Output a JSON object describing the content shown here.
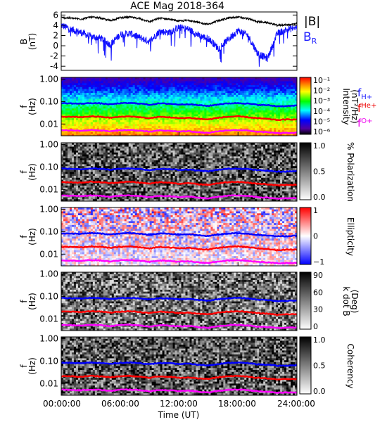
{
  "title": "ACE Mag 2018-364",
  "x_axis": {
    "label": "Time (UT)",
    "ticks": [
      "00:00:00",
      "06:00:00",
      "12:00:00",
      "18:00:00",
      "24:00:00"
    ],
    "tick_hours": [
      0,
      6,
      12,
      18,
      24
    ]
  },
  "freq_axis": {
    "ylabel_top": "f",
    "ylabel_bottom": "(Hz)",
    "ticks": [
      "1.00",
      "0.10",
      "0.01"
    ],
    "tick_values": [
      1.0,
      0.1,
      0.01
    ],
    "range": [
      0.003,
      1.2
    ]
  },
  "colors": {
    "B_total": "#000000",
    "B_R": "#1010ff",
    "fH": "#0000ff",
    "fHe": "#ff0000",
    "fO": "#ff00ff"
  },
  "panel1": {
    "ylabel_top": "B",
    "ylabel_bottom": "(nT)",
    "legend_B": "|B|",
    "legend_BR": "B",
    "legend_BR_sub": "R",
    "ticks": [
      "6",
      "4",
      "2",
      "0",
      "-2",
      "-4"
    ],
    "tick_values": [
      6,
      4,
      2,
      0,
      -2,
      -4
    ],
    "range": [
      -4.8,
      6.6
    ]
  },
  "gyro_legend": {
    "fH": {
      "main": "f",
      "sub": "H+"
    },
    "fHe": {
      "main": "f",
      "sub": "He+"
    },
    "fO": {
      "main": "f",
      "sub": "O+"
    }
  },
  "colorbars": {
    "intensity": {
      "label1": "Intensity",
      "label2": "(nT²/Hz)",
      "ticks": [
        "10⁻¹",
        "10⁻²",
        "10⁻³",
        "10⁻⁴",
        "10⁻⁵",
        "10⁻⁶"
      ]
    },
    "polarization": {
      "label": "% Polarization",
      "ticks": [
        "1.0",
        "0.5",
        "0.0"
      ]
    },
    "ellipticity": {
      "label": "Ellipticity",
      "ticks": [
        "1",
        "0",
        "−1"
      ]
    },
    "kdotb": {
      "label1": "k dot B",
      "label2": "(Deg)",
      "ticks": [
        "90",
        "60",
        "30",
        "0"
      ]
    },
    "coherency": {
      "label": "Coherency",
      "ticks": [
        "1.0",
        "0.5",
        "0.0"
      ]
    }
  },
  "chart_data": {
    "type": "line",
    "title": "ACE Mag 2018-364",
    "xlabel": "Time (UT)",
    "x_hours": [
      0,
      1,
      2,
      3,
      4,
      5,
      6,
      7,
      8,
      9,
      10,
      11,
      12,
      13,
      14,
      15,
      16,
      17,
      18,
      19,
      20,
      21,
      22,
      23,
      24
    ],
    "series": [
      {
        "name": "|B|",
        "panel": "B (nT)",
        "values": [
          5.5,
          5.4,
          5.2,
          5.6,
          5.4,
          4.9,
          5.5,
          5.6,
          5.3,
          4.7,
          5.4,
          5.2,
          4.8,
          5.0,
          4.5,
          4.2,
          4.9,
          5.4,
          5.6,
          5.3,
          4.7,
          4.5,
          4.0,
          4.1,
          4.3
        ]
      },
      {
        "name": "B_R",
        "panel": "B (nT)",
        "values": [
          4.0,
          3.2,
          2.6,
          1.8,
          1.5,
          0.2,
          2.2,
          2.4,
          1.6,
          0.8,
          2.8,
          2.6,
          3.6,
          3.2,
          2.0,
          1.4,
          -0.5,
          1.2,
          3.0,
          2.0,
          -1.5,
          -2.5,
          2.4,
          3.2,
          3.5
        ]
      },
      {
        "name": "fH+",
        "panel": "f (Hz)",
        "values": [
          0.085,
          0.083,
          0.08,
          0.086,
          0.083,
          0.075,
          0.084,
          0.086,
          0.082,
          0.072,
          0.083,
          0.08,
          0.074,
          0.077,
          0.069,
          0.064,
          0.075,
          0.083,
          0.086,
          0.081,
          0.072,
          0.069,
          0.062,
          0.063,
          0.066
        ]
      },
      {
        "name": "fHe+",
        "panel": "f (Hz)",
        "values": [
          0.021,
          0.021,
          0.02,
          0.022,
          0.021,
          0.019,
          0.021,
          0.022,
          0.02,
          0.018,
          0.021,
          0.02,
          0.018,
          0.019,
          0.017,
          0.016,
          0.019,
          0.021,
          0.022,
          0.02,
          0.018,
          0.017,
          0.015,
          0.016,
          0.016
        ]
      },
      {
        "name": "fO+",
        "panel": "f (Hz)",
        "values": [
          0.0053,
          0.0052,
          0.005,
          0.0054,
          0.0052,
          0.0047,
          0.0053,
          0.0054,
          0.0051,
          0.0045,
          0.0052,
          0.005,
          0.0046,
          0.0048,
          0.0043,
          0.004,
          0.0047,
          0.0052,
          0.0054,
          0.0051,
          0.0045,
          0.0043,
          0.0039,
          0.004,
          0.0041
        ]
      }
    ],
    "spectrogram_panels": [
      "Intensity (nT²/Hz)",
      "% Polarization",
      "Ellipticity",
      "k dot B (Deg)",
      "Coherency"
    ],
    "xlim": [
      0,
      24
    ],
    "y_scale_freq": "log"
  }
}
